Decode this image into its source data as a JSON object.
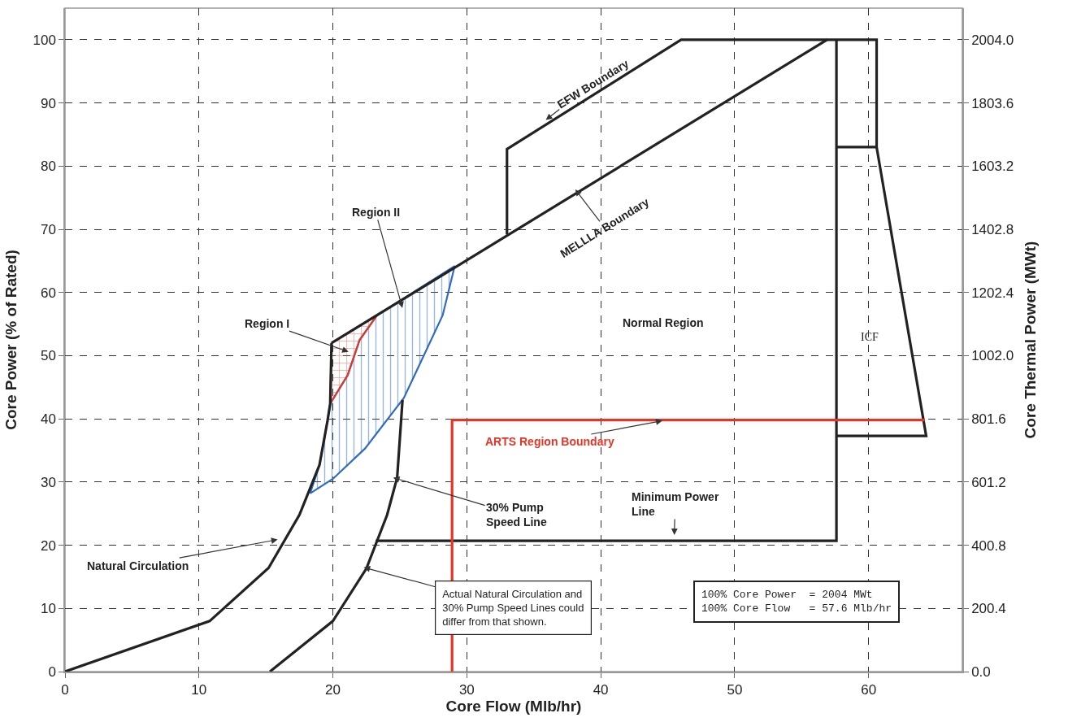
{
  "chart_data": {
    "type": "line",
    "xlabel": "Core Flow (Mlb/hr)",
    "ylabel": "Core Power (% of Rated)",
    "y2label": "Core Thermal Power (MWt)",
    "xlim": [
      0,
      67
    ],
    "xticks": [
      0,
      10,
      20,
      30,
      40,
      50,
      60
    ],
    "ylim": [
      0,
      105
    ],
    "yticks": [
      0,
      10,
      20,
      30,
      40,
      50,
      60,
      70,
      80,
      90,
      100
    ],
    "y2lim": [
      0,
      2104.2
    ],
    "y2ticks": [
      {
        "value": 0,
        "label": "0.0"
      },
      200.4,
      400.8,
      601.2,
      801.6,
      {
        "value": 1002,
        "label": "1002.0"
      },
      1202.4,
      1402.8,
      1603.2,
      1803.6,
      {
        "value": 2004,
        "label": "2004.0"
      }
    ],
    "grid": true,
    "marker": "none",
    "line_style": "solid",
    "series": [
      {
        "type": "area",
        "color": "#2f6bc4",
        "x": [
          18.3,
          20,
          22.4,
          25.3,
          28.2,
          29.1,
          23.3,
          22,
          21.1,
          19.8,
          19.6,
          19.0,
          18.3
        ],
        "values": [
          28.2,
          30.5,
          35.3,
          43.3,
          56.4,
          64.2,
          56.4,
          52.5,
          46.9,
          42.4,
          39.7,
          32.7,
          28.2
        ]
      },
      {
        "type": "area",
        "color": "#e53527",
        "x": [
          19.9,
          23.3,
          22,
          21.1,
          19.8,
          19.9
        ],
        "values": [
          52,
          56.4,
          52.5,
          46.9,
          42.4,
          52
        ]
      },
      {
        "color": "#222222",
        "x": [
          0,
          10.8,
          15.2,
          17.5,
          19.0,
          19.6,
          19.8,
          19.9
        ],
        "values": [
          0,
          8,
          16.4,
          24.8,
          32.7,
          39.7,
          42.4,
          52
        ]
      },
      {
        "color": "#222222",
        "x": [
          15.3,
          20,
          22.5,
          24.05,
          24.8,
          25.2
        ],
        "values": [
          0,
          8,
          16.3,
          24.8,
          30.7,
          43
        ]
      },
      {
        "color": "#222222",
        "x": [
          19.9,
          56.9
        ],
        "values": [
          52,
          100
        ]
      },
      {
        "color": "#222222",
        "x": [
          33,
          33,
          46,
          60.6,
          60.6,
          64.3,
          57.6
        ],
        "values": [
          69.2,
          82.7,
          100,
          100,
          83,
          37.3,
          37.3
        ]
      },
      {
        "color": "#222222",
        "x": [
          57.6,
          60.6
        ],
        "values": [
          83,
          83
        ]
      },
      {
        "color": "#222222",
        "x": [
          23.2,
          57.6,
          57.6
        ],
        "values": [
          20.7,
          20.7,
          100
        ]
      },
      {
        "color": "#e53527",
        "x": [
          28.9,
          28.9,
          64.2
        ],
        "values": [
          0,
          39.8,
          39.8
        ]
      }
    ],
    "annotations": [
      {
        "text": "EFW Boundary",
        "x": 35.9,
        "y": 87.3
      },
      {
        "text": "MELLLA Boundary",
        "x": 38.1,
        "y": 76.3
      },
      "Region II",
      "Region I",
      "Normal Region",
      "ICF",
      {
        "text": "ARTS Region Boundary",
        "x": 44.6,
        "y": 39.7
      },
      {
        "text": "30% Pump\nSpeed Line",
        "x": 24.5,
        "y": 30.7
      },
      "Minimum Power\nLine",
      "Natural Circulation",
      {
        "text": "Actual Natural Circulation and\n30% Pump Speed Lines could\ndiffer from that shown.",
        "x": 22.3,
        "y": 16.5
      },
      "100% Core Power  = 2004 MWt\n100% Core Flow   = 57.6 Mlb/hr"
    ]
  }
}
